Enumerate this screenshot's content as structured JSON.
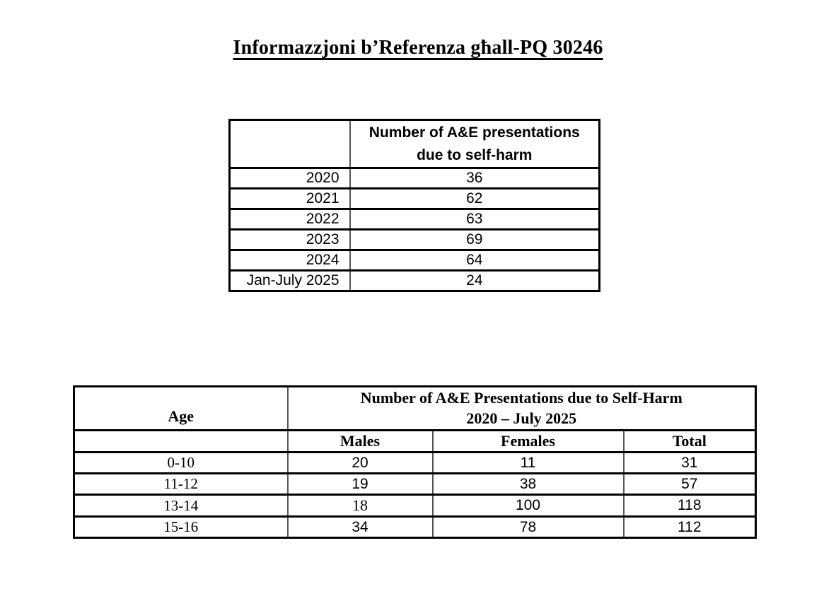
{
  "page": {
    "background": "#ffffff",
    "text_color": "#000000",
    "border_color": "#000000",
    "divider_color": "#555555"
  },
  "title": "Informazzjoni b’Referenza għall-PQ 30246",
  "table1": {
    "header_line1": "Number of A&E presentations",
    "header_line2": "due to self-harm",
    "rows": [
      {
        "label": "2020",
        "value": "36"
      },
      {
        "label": "2021",
        "value": "62"
      },
      {
        "label": "2022",
        "value": "63"
      },
      {
        "label": "2023",
        "value": "69"
      },
      {
        "label": "2024",
        "value": "64"
      },
      {
        "label": "Jan-July 2025",
        "value": "24"
      }
    ]
  },
  "table2": {
    "age_header": "Age",
    "span_header_line1": "Number of A&E Presentations due to Self-Harm",
    "span_header_line2": "2020 – July 2025",
    "col_males": "Males",
    "col_females": "Females",
    "col_total": "Total",
    "rows": [
      {
        "age": "0-10",
        "males": "20",
        "females": "11",
        "total": "31"
      },
      {
        "age": "11-12",
        "males": "19",
        "females": "38",
        "total": "57"
      },
      {
        "age": "13-14",
        "males": "18",
        "females": "100",
        "total": "118"
      },
      {
        "age": "15-16",
        "males": "34",
        "females": "78",
        "total": "112"
      }
    ]
  }
}
